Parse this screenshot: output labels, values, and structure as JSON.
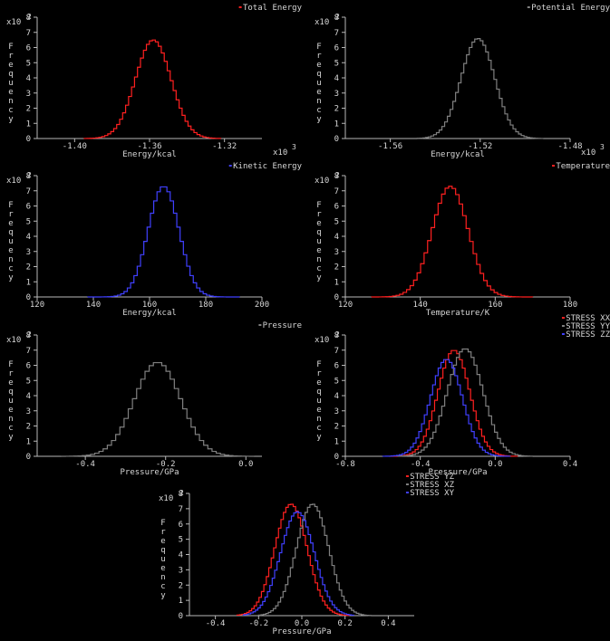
{
  "chart_data": [
    {
      "type": "histogram",
      "legend": [
        {
          "label": "Total Energy",
          "color": "#ff2020"
        }
      ],
      "x_axis": {
        "range": [
          -1.42,
          -1.3
        ],
        "ticks": [
          -1.4,
          -1.36,
          -1.32
        ],
        "tick_labels": [
          "-1.40",
          "-1.36",
          "-1.32"
        ],
        "label": "Energy/kcal",
        "multiplier_base": "x10",
        "multiplier_exp": "3"
      },
      "y_axis": {
        "range": [
          0,
          8
        ],
        "ticks": [
          0,
          1,
          2,
          3,
          4,
          5,
          6,
          7,
          8
        ],
        "label": "Frequency",
        "multiplier_base": "x10",
        "multiplier_exp": "2"
      },
      "series": [
        {
          "name": "Total Energy",
          "color": "#ff2020",
          "mean": -1.358,
          "sd": 0.0095,
          "peak": 6.5,
          "xmin": -1.395,
          "xmax": -1.322
        }
      ]
    },
    {
      "type": "histogram",
      "legend": [
        {
          "label": "Potential Energy",
          "color": "#808080"
        }
      ],
      "x_axis": {
        "range": [
          -1.58,
          -1.48
        ],
        "ticks": [
          -1.56,
          -1.52,
          -1.48
        ],
        "tick_labels": [
          "-1.56",
          "-1.52",
          "-1.48"
        ],
        "label": "Energy/kcal",
        "multiplier_base": "x10",
        "multiplier_exp": "3"
      },
      "y_axis": {
        "range": [
          0,
          8
        ],
        "ticks": [
          0,
          1,
          2,
          3,
          4,
          5,
          6,
          7,
          8
        ],
        "label": "Frequency",
        "multiplier_base": "x10",
        "multiplier_exp": "2"
      },
      "series": [
        {
          "name": "Potential Energy",
          "color": "#808080",
          "mean": -1.521,
          "sd": 0.0075,
          "peak": 6.6,
          "xmin": -1.548,
          "xmax": -1.492
        }
      ]
    },
    {
      "type": "histogram",
      "legend": [
        {
          "label": "Kinetic Energy",
          "color": "#4040ff"
        }
      ],
      "x_axis": {
        "range": [
          120,
          200
        ],
        "ticks": [
          120,
          140,
          160,
          180,
          200
        ],
        "tick_labels": [
          "120",
          "140",
          "160",
          "180",
          "200"
        ],
        "label": "Energy/kcal"
      },
      "y_axis": {
        "range": [
          0,
          8
        ],
        "ticks": [
          0,
          1,
          2,
          3,
          4,
          5,
          6,
          7,
          8
        ],
        "label": "Frequency",
        "multiplier_base": "x10",
        "multiplier_exp": "2"
      },
      "series": [
        {
          "name": "Kinetic Energy",
          "color": "#4040ff",
          "mean": 165,
          "sd": 5.5,
          "peak": 7.3,
          "xmin": 138,
          "xmax": 192
        }
      ]
    },
    {
      "type": "histogram",
      "legend": [
        {
          "label": "Temperature",
          "color": "#ff2020"
        }
      ],
      "x_axis": {
        "range": [
          120,
          180
        ],
        "ticks": [
          120,
          140,
          160,
          180
        ],
        "tick_labels": [
          "120",
          "140",
          "160",
          "180"
        ],
        "label": "Temperature/K"
      },
      "y_axis": {
        "range": [
          0,
          8
        ],
        "ticks": [
          0,
          1,
          2,
          3,
          4,
          5,
          6,
          7,
          8
        ],
        "label": "Frequency",
        "multiplier_base": "x10",
        "multiplier_exp": "2"
      },
      "series": [
        {
          "name": "Temperature",
          "color": "#ff2020",
          "mean": 148,
          "sd": 4.8,
          "peak": 7.3,
          "xmin": 127,
          "xmax": 170
        }
      ]
    },
    {
      "type": "histogram",
      "legend": [
        {
          "label": "Pressure",
          "color": "#808080"
        }
      ],
      "x_axis": {
        "range": [
          -0.52,
          0.04
        ],
        "ticks": [
          -0.4,
          -0.2,
          0.0
        ],
        "tick_labels": [
          "-0.4",
          "-0.2",
          "0.0"
        ],
        "label": "Pressure/GPa"
      },
      "y_axis": {
        "range": [
          0,
          8
        ],
        "ticks": [
          0,
          1,
          2,
          3,
          4,
          5,
          6,
          7,
          8
        ],
        "label": "Frequency",
        "multiplier_base": "x10",
        "multiplier_exp": "2"
      },
      "series": [
        {
          "name": "Pressure",
          "color": "#808080",
          "mean": -0.22,
          "sd": 0.058,
          "peak": 6.2,
          "xmin": -0.46,
          "xmax": 0.02
        }
      ]
    },
    {
      "type": "histogram",
      "legend": [
        {
          "label": "STRESS XX",
          "color": "#ff2020"
        },
        {
          "label": "STRESS YY",
          "color": "#808080"
        },
        {
          "label": "STRESS ZZ",
          "color": "#4040ff"
        }
      ],
      "x_axis": {
        "range": [
          -0.8,
          0.4
        ],
        "ticks": [
          -0.8,
          -0.4,
          0.0,
          0.4
        ],
        "tick_labels": [
          "-0.8",
          "-0.4",
          "0.0",
          "0.4"
        ],
        "label": "Pressure/GPa"
      },
      "y_axis": {
        "range": [
          0,
          8
        ],
        "ticks": [
          0,
          1,
          2,
          3,
          4,
          5,
          6,
          7,
          8
        ],
        "label": "Frequency",
        "multiplier_base": "x10",
        "multiplier_exp": "2"
      },
      "series": [
        {
          "name": "STRESS XX",
          "color": "#ff2020",
          "mean": -0.22,
          "sd": 0.085,
          "peak": 7.0,
          "xmin": -0.56,
          "xmax": 0.12
        },
        {
          "name": "STRESS YY",
          "color": "#808080",
          "mean": -0.16,
          "sd": 0.095,
          "peak": 7.1,
          "xmin": -0.52,
          "xmax": 0.2
        },
        {
          "name": "STRESS ZZ",
          "color": "#4040ff",
          "mean": -0.26,
          "sd": 0.085,
          "peak": 6.4,
          "xmin": -0.6,
          "xmax": 0.08
        }
      ]
    },
    {
      "type": "histogram",
      "legend": [
        {
          "label": "STRESS YZ",
          "color": "#ff2020"
        },
        {
          "label": "STRESS XZ",
          "color": "#808080"
        },
        {
          "label": "STRESS XY",
          "color": "#4040ff"
        }
      ],
      "x_axis": {
        "range": [
          -0.52,
          0.52
        ],
        "ticks": [
          -0.4,
          -0.2,
          0.0,
          0.2,
          0.4
        ],
        "tick_labels": [
          "-0.4",
          "-0.2",
          "0.0",
          "0.2",
          "0.4"
        ],
        "label": "Pressure/GPa"
      },
      "y_axis": {
        "range": [
          0,
          8
        ],
        "ticks": [
          0,
          1,
          2,
          3,
          4,
          5,
          6,
          7,
          8
        ],
        "label": "Frequency",
        "multiplier_base": "x10",
        "multiplier_exp": "2"
      },
      "series": [
        {
          "name": "STRESS YZ",
          "color": "#ff2020",
          "mean": -0.05,
          "sd": 0.075,
          "peak": 7.3,
          "xmin": -0.3,
          "xmax": 0.22
        },
        {
          "name": "STRESS XZ",
          "color": "#808080",
          "mean": 0.05,
          "sd": 0.075,
          "peak": 7.3,
          "xmin": -0.2,
          "xmax": 0.32
        },
        {
          "name": "STRESS XY",
          "color": "#4040ff",
          "mean": -0.02,
          "sd": 0.078,
          "peak": 6.8,
          "xmin": -0.27,
          "xmax": 0.24
        }
      ]
    }
  ]
}
